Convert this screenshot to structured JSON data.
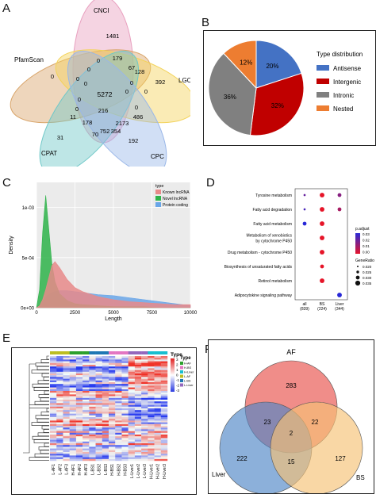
{
  "panels": {
    "a": "A",
    "b": "B",
    "c": "C",
    "d": "D",
    "e": "E",
    "f": "F"
  },
  "panel_a": {
    "sets": [
      "CNCI",
      "PfamScan",
      "LGC",
      "CPAT",
      "CPC"
    ],
    "colors": [
      "#e8a0bf",
      "#d9a56a",
      "#f3d35a",
      "#6fc8c8",
      "#9ab7e8"
    ],
    "counts": [
      "1481",
      "179",
      "0",
      "0",
      "128",
      "67",
      "392",
      "0",
      "0",
      "0",
      "0",
      "0",
      "5272",
      "216",
      "0",
      "0",
      "0",
      "11",
      "178",
      "2173",
      "486",
      "70",
      "752",
      "354",
      "31",
      "192",
      "0"
    ]
  },
  "panel_b": {
    "legend_title": "Type distribution",
    "colors": [
      "#4472c4",
      "#c00000",
      "#808080",
      "#ed7d31"
    ]
  },
  "panel_c": {
    "legend_title": "type",
    "ylabel": "Density",
    "xlabel": "Length",
    "yticks": [
      "1e-03",
      "5e-04",
      "0e+00"
    ],
    "xticks": [
      "0",
      "2500",
      "5000",
      "7500",
      "10000"
    ],
    "series_labels": [
      "Known lncRNA",
      "Novel lncRNA",
      "Protein coding"
    ],
    "colors": [
      "#e88a8a",
      "#2eb34a",
      "#6aa6e8"
    ]
  },
  "panel_e": {
    "legend_title": "Type",
    "scale_title": "Type",
    "scale_ticks": [
      "3",
      "2",
      "1",
      "0",
      "-1",
      "-2",
      "-3"
    ],
    "groups": [
      "H-AF",
      "H-BS",
      "H-Liver",
      "L-AF",
      "L-BS",
      "L-Liver"
    ],
    "group_colors": [
      "#2ca02c",
      "#e377c2",
      "#17becf",
      "#bcbd22",
      "#1f77b4",
      "#9467bd"
    ],
    "columns": [
      "L-AF1",
      "L-AF2",
      "L-AF3",
      "H-AF1",
      "H-AF2",
      "H-AF3",
      "L-BS1",
      "L-BS2",
      "L-BS3",
      "H-BS1",
      "H-BS2",
      "H-BS3",
      "L-Liver1",
      "L-Liver2",
      "L-Liver3",
      "H-Liver1",
      "H-Liver2",
      "H-Liver3"
    ]
  },
  "chart_data": [
    {
      "type": "pie",
      "title": "Type distribution",
      "categories": [
        "Antisense",
        "Intergenic",
        "Intronic",
        "Nested"
      ],
      "values": [
        20,
        32,
        36,
        12
      ],
      "labels": [
        "20%",
        "32%",
        "36%",
        "12%"
      ],
      "legend": "right"
    },
    {
      "type": "area",
      "xlabel": "Length",
      "ylabel": "Density",
      "xlim": [
        0,
        10000
      ],
      "ylim": [
        0,
        0.00125
      ],
      "x": [
        0,
        200,
        400,
        600,
        800,
        1000,
        1200,
        1500,
        2000,
        2500,
        3000,
        4000,
        5000,
        6000,
        7000,
        8000,
        9000,
        10000
      ],
      "series": [
        {
          "name": "Known lncRNA",
          "values": [
            0,
            2e-05,
            8e-05,
            0.00018,
            0.0003,
            0.00042,
            0.00046,
            0.0004,
            0.00028,
            0.0002,
            0.00016,
            0.00011,
            8e-05,
            6e-05,
            5e-05,
            4e-05,
            3e-05,
            3e-05
          ]
        },
        {
          "name": "Novel lncRNA",
          "values": [
            0,
            0.00018,
            0.00075,
            0.00112,
            0.00078,
            0.00044,
            0.00026,
            0.00014,
            7e-05,
            4e-05,
            3e-05,
            2e-05,
            1e-05,
            1e-05,
            1e-05,
            0,
            0,
            0
          ]
        },
        {
          "name": "Protein coding",
          "values": [
            0,
            3e-05,
            7e-05,
            0.00011,
            0.00013,
            0.00015,
            0.00016,
            0.00017,
            0.00017,
            0.00016,
            0.00015,
            0.00013,
            0.00012,
            0.0001,
            8e-05,
            6e-05,
            4e-05,
            2e-05
          ]
        }
      ],
      "legend_title": "type",
      "legend": "top-right"
    },
    {
      "type": "scatter",
      "categories": [
        "all\n(839)",
        "BS\n(224)",
        "Liver\n(344)"
      ],
      "cat_lines": [
        [
          "all",
          "(839)"
        ],
        [
          "BS",
          "(224)"
        ],
        [
          "Liver",
          "(344)"
        ]
      ],
      "terms": [
        [
          "Tyrosine metabolism"
        ],
        [
          "Fatty acid degradation"
        ],
        [
          "Fatty acid metabolism"
        ],
        [
          "Metabolism of xenobiotics",
          "by cytochrome P450"
        ],
        [
          "Drug metabolism - cytochrome P450"
        ],
        [
          "Biosynthesis of unsaturated fatty acids"
        ],
        [
          "Retinol metabolism"
        ],
        [
          "Adipocytokine signaling pathway"
        ]
      ],
      "points": [
        {
          "term": 0,
          "cat": 0,
          "ratio": 0.01,
          "padj": 0.02
        },
        {
          "term": 0,
          "cat": 1,
          "ratio": 0.025,
          "padj": 0.0
        },
        {
          "term": 0,
          "cat": 2,
          "ratio": 0.02,
          "padj": 0.015
        },
        {
          "term": 1,
          "cat": 0,
          "ratio": 0.01,
          "padj": 0.025
        },
        {
          "term": 1,
          "cat": 1,
          "ratio": 0.025,
          "padj": 0.0
        },
        {
          "term": 1,
          "cat": 2,
          "ratio": 0.02,
          "padj": 0.01
        },
        {
          "term": 2,
          "cat": 0,
          "ratio": 0.02,
          "padj": 0.03
        },
        {
          "term": 2,
          "cat": 1,
          "ratio": 0.025,
          "padj": 0.0
        },
        {
          "term": 3,
          "cat": 1,
          "ratio": 0.025,
          "padj": 0.0
        },
        {
          "term": 4,
          "cat": 1,
          "ratio": 0.025,
          "padj": 0.0
        },
        {
          "term": 5,
          "cat": 1,
          "ratio": 0.02,
          "padj": 0.0
        },
        {
          "term": 6,
          "cat": 1,
          "ratio": 0.025,
          "padj": 0.0
        },
        {
          "term": 7,
          "cat": 2,
          "ratio": 0.025,
          "padj": 0.03
        }
      ],
      "legend": {
        "color_title": "p.adjust",
        "color_ticks": [
          "0.03",
          "0.02",
          "0.01",
          "0.00"
        ],
        "size_title": "GeneRatio",
        "size_ticks": [
          "0.020",
          "0.025",
          "0.030",
          "0.035"
        ]
      }
    },
    {
      "type": "table",
      "title": "Venn diagram",
      "sets": [
        "AF",
        "Liver",
        "BS"
      ],
      "colors": [
        "#e8504a",
        "#4f86c6",
        "#f6c274"
      ],
      "regions": {
        "AF_only": 283,
        "Liver_only": 222,
        "BS_only": 127,
        "AF_Liver": 23,
        "AF_BS": 22,
        "Liver_BS": 15,
        "all": 2
      }
    }
  ]
}
